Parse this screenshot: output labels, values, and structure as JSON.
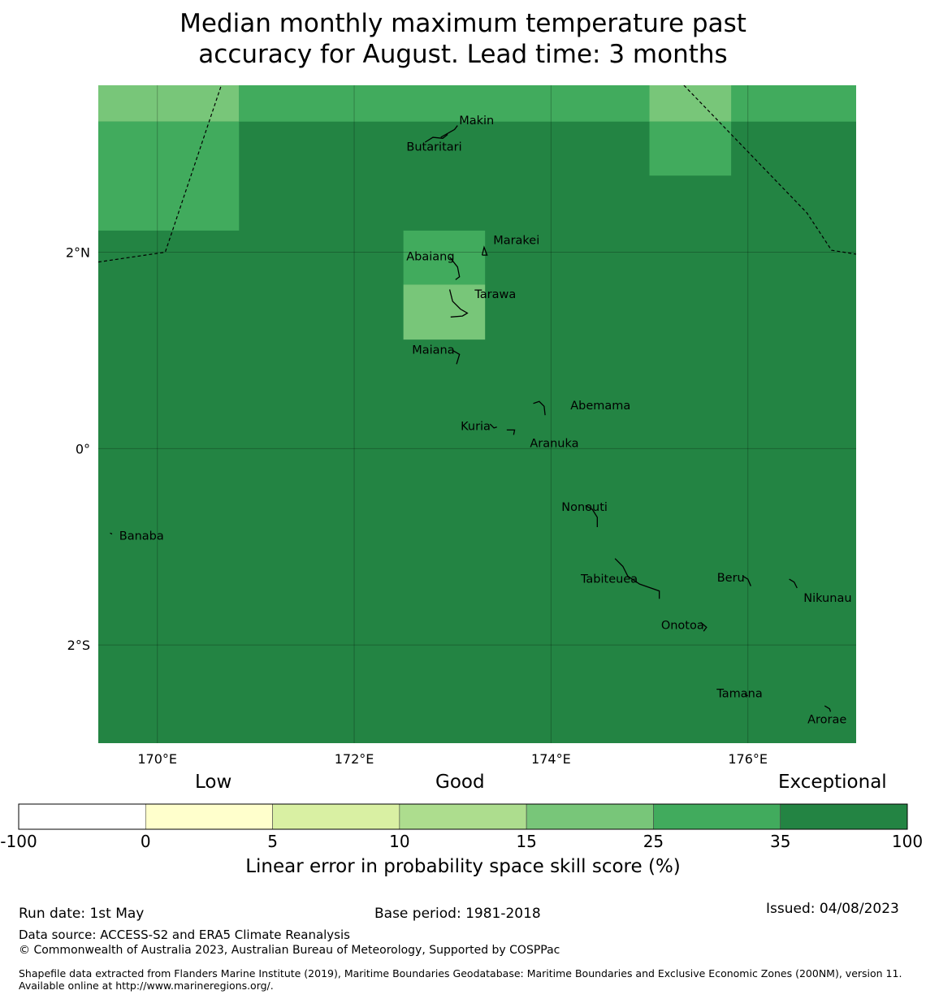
{
  "title_line1": "Median monthly maximum temperature past",
  "title_line2": "accuracy for August. Lead time: 3 months",
  "map": {
    "lon_range": [
      169.4,
      177.1
    ],
    "lat_range": [
      -3.0,
      3.7
    ],
    "lon_ticks": [
      {
        "value": 170,
        "label": "170°E"
      },
      {
        "value": 172,
        "label": "172°E"
      },
      {
        "value": 174,
        "label": "174°E"
      },
      {
        "value": 176,
        "label": "176°E"
      }
    ],
    "lat_ticks": [
      {
        "value": 2,
        "label": "2°N"
      },
      {
        "value": 0,
        "label": "0°"
      },
      {
        "value": -2,
        "label": "2°S"
      }
    ],
    "background_category": "35-100",
    "skill_cells": [
      {
        "lon": [
          169.4,
          170.83
        ],
        "lat": [
          3.33,
          3.7
        ],
        "category": "15-25"
      },
      {
        "lon": [
          169.4,
          170.83
        ],
        "lat": [
          2.22,
          3.33
        ],
        "category": "25-35"
      },
      {
        "lon": [
          170.83,
          177.1
        ],
        "lat": [
          3.33,
          3.7
        ],
        "category": "25-35"
      },
      {
        "lon": [
          175.0,
          175.83
        ],
        "lat": [
          3.33,
          3.7
        ],
        "category": "15-25"
      },
      {
        "lon": [
          175.0,
          175.83
        ],
        "lat": [
          2.78,
          3.33
        ],
        "category": "25-35"
      },
      {
        "lon": [
          172.5,
          173.33
        ],
        "lat": [
          1.67,
          2.22
        ],
        "category": "25-35"
      },
      {
        "lon": [
          172.5,
          173.33
        ],
        "lat": [
          1.11,
          1.67
        ],
        "category": "15-25"
      }
    ],
    "eez_boundaries": [
      [
        [
          169.4,
          1.9
        ],
        [
          170.08,
          2.0
        ],
        [
          170.65,
          3.7
        ]
      ],
      [
        [
          175.35,
          3.7
        ],
        [
          176.6,
          2.4
        ],
        [
          176.85,
          2.02
        ],
        [
          177.1,
          1.98
        ]
      ]
    ],
    "islands": [
      {
        "name": "Makin",
        "lon": 173.0,
        "lat": 3.27,
        "label_dx": 8,
        "label_dy": -4,
        "outline": [
          [
            172.88,
            3.17
          ],
          [
            173.02,
            3.25
          ],
          [
            173.05,
            3.29
          ]
        ]
      },
      {
        "name": "Butaritari",
        "lon": 172.82,
        "lat": 3.15,
        "label_dx": -35,
        "label_dy": 14,
        "outline": [
          [
            172.72,
            3.12
          ],
          [
            172.8,
            3.17
          ],
          [
            172.9,
            3.16
          ],
          [
            172.95,
            3.2
          ]
        ]
      },
      {
        "name": "Marakei",
        "lon": 173.33,
        "lat": 2.0,
        "label_dx": 10,
        "label_dy": -10,
        "outline": [
          [
            173.3,
            1.97
          ],
          [
            173.32,
            2.05
          ],
          [
            173.35,
            1.97
          ],
          [
            173.3,
            1.97
          ]
        ]
      },
      {
        "name": "Abaiang",
        "lon": 173.0,
        "lat": 1.85,
        "label_dx": -57,
        "label_dy": -8,
        "outline": [
          [
            172.97,
            1.95
          ],
          [
            173.05,
            1.85
          ],
          [
            173.07,
            1.75
          ],
          [
            173.03,
            1.72
          ]
        ]
      },
      {
        "name": "Tarawa",
        "lon": 173.1,
        "lat": 1.4,
        "label_dx": 15,
        "label_dy": -16,
        "outline": [
          [
            172.97,
            1.62
          ],
          [
            173.0,
            1.5
          ],
          [
            173.08,
            1.42
          ],
          [
            173.15,
            1.38
          ],
          [
            173.1,
            1.35
          ],
          [
            172.98,
            1.34
          ]
        ]
      },
      {
        "name": "Maiana",
        "lon": 173.0,
        "lat": 0.95,
        "label_dx": -50,
        "label_dy": -2,
        "outline": [
          [
            173.0,
            1.0
          ],
          [
            173.07,
            0.96
          ],
          [
            173.04,
            0.86
          ]
        ]
      },
      {
        "name": "Abemama",
        "lon": 173.9,
        "lat": 0.4,
        "label_dx": 36,
        "label_dy": 0,
        "outline": [
          [
            173.82,
            0.46
          ],
          [
            173.88,
            0.48
          ],
          [
            173.93,
            0.43
          ],
          [
            173.94,
            0.34
          ]
        ]
      },
      {
        "name": "Kuria",
        "lon": 173.42,
        "lat": 0.22,
        "label_dx": -41,
        "label_dy": 4,
        "outline": [
          [
            173.38,
            0.25
          ],
          [
            173.42,
            0.21
          ],
          [
            173.45,
            0.22
          ]
        ]
      },
      {
        "name": "Aranuka",
        "lon": 173.62,
        "lat": 0.18,
        "label_dx": 20,
        "label_dy": 20,
        "outline": [
          [
            173.55,
            0.19
          ],
          [
            173.63,
            0.19
          ],
          [
            173.62,
            0.14
          ]
        ]
      },
      {
        "name": "Nonouti",
        "lon": 174.42,
        "lat": -0.65,
        "label_dx": -38,
        "label_dy": -2,
        "outline": [
          [
            174.35,
            -0.58
          ],
          [
            174.42,
            -0.62
          ],
          [
            174.47,
            -0.7
          ],
          [
            174.47,
            -0.8
          ]
        ]
      },
      {
        "name": "Tabiteuea",
        "lon": 174.83,
        "lat": -1.35,
        "label_dx": -64,
        "label_dy": 2,
        "outline": [
          [
            174.65,
            -1.12
          ],
          [
            174.73,
            -1.2
          ],
          [
            174.78,
            -1.3
          ],
          [
            174.9,
            -1.38
          ],
          [
            175.1,
            -1.45
          ],
          [
            175.1,
            -1.53
          ]
        ]
      },
      {
        "name": "Beru",
        "lon": 176.0,
        "lat": -1.33,
        "label_dx": -38,
        "label_dy": 3,
        "outline": [
          [
            175.95,
            -1.3
          ],
          [
            176.0,
            -1.33
          ],
          [
            176.03,
            -1.4
          ]
        ]
      },
      {
        "name": "Nikunau",
        "lon": 176.45,
        "lat": -1.38,
        "label_dx": 14,
        "label_dy": 22,
        "outline": [
          [
            176.42,
            -1.33
          ],
          [
            176.47,
            -1.36
          ],
          [
            176.5,
            -1.42
          ]
        ]
      },
      {
        "name": "Onotoa",
        "lon": 175.58,
        "lat": -1.82,
        "label_dx": -56,
        "label_dy": 2,
        "outline": [
          [
            175.52,
            -1.77
          ],
          [
            175.58,
            -1.82
          ],
          [
            175.55,
            -1.86
          ]
        ]
      },
      {
        "name": "Tamana",
        "lon": 175.98,
        "lat": -2.5,
        "label_dx": -36,
        "label_dy": 4,
        "outline": [
          [
            175.97,
            -2.5
          ],
          [
            176.0,
            -2.52
          ]
        ]
      },
      {
        "name": "Arorae",
        "lon": 176.82,
        "lat": -2.65,
        "label_dx": -26,
        "label_dy": 18,
        "outline": [
          [
            176.78,
            -2.62
          ],
          [
            176.83,
            -2.65
          ],
          [
            176.84,
            -2.68
          ]
        ]
      },
      {
        "name": "Banaba",
        "lon": 169.53,
        "lat": -0.86,
        "label_dx": 10,
        "label_dy": 8,
        "outline": [
          [
            169.52,
            -0.86
          ],
          [
            169.54,
            -0.87
          ]
        ]
      }
    ]
  },
  "colorbar": {
    "words": {
      "low": "Low",
      "good": "Good",
      "exceptional": "Exceptional"
    },
    "categories": [
      {
        "id": "-100-0",
        "color": "#ffffff"
      },
      {
        "id": "0-5",
        "color": "#ffffcc"
      },
      {
        "id": "5-10",
        "color": "#d9f0a3"
      },
      {
        "id": "10-15",
        "color": "#addd8e"
      },
      {
        "id": "15-25",
        "color": "#78c679"
      },
      {
        "id": "25-35",
        "color": "#41ab5d"
      },
      {
        "id": "35-100",
        "color": "#238443"
      }
    ],
    "ticks": [
      "-100",
      "0",
      "5",
      "10",
      "15",
      "25",
      "35",
      "100"
    ],
    "label": "Linear error in probability space skill score (%)"
  },
  "footer": {
    "run_date": "Run date: 1st May",
    "base_period": "Base period: 1981-2018",
    "issued": "Issued: 04/08/2023",
    "data_source": "Data source: ACCESS-S2 and ERA5 Climate Reanalysis",
    "copyright": "© Commonwealth of Australia 2023, Australian Bureau of Meteorology, Supported by COSPPac",
    "shapefile": "Shapefile data extracted from Flanders Marine Institute (2019), Maritime Boundaries Geodatabase: Maritime Boundaries and Exclusive Economic Zones (200NM), version 11. Available online at http://www.marineregions.org/."
  }
}
